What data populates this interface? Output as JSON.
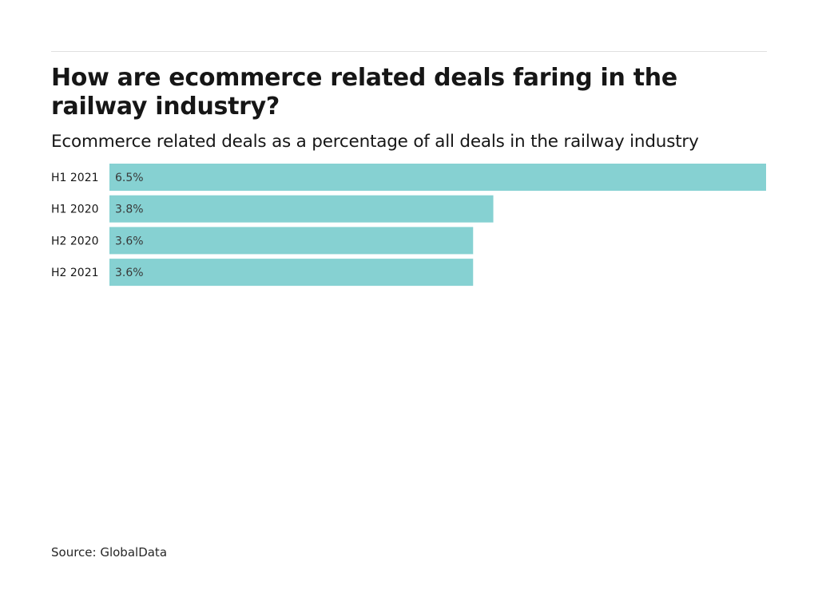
{
  "chart_data": {
    "type": "bar",
    "orientation": "horizontal",
    "title": "How are ecommerce related deals faring in the railway industry?",
    "subtitle": "Ecommerce related deals as a percentage of all deals in the railway industry",
    "categories": [
      "H1 2021",
      "H1 2020",
      "H2 2020",
      "H2 2021"
    ],
    "values": [
      6.5,
      3.8,
      3.6,
      3.6
    ],
    "value_labels": [
      "6.5%",
      "3.8%",
      "3.6%",
      "3.6%"
    ],
    "xlabel": "",
    "ylabel": "",
    "xlim": [
      0,
      6.5
    ],
    "grid": false,
    "legend": "none",
    "bar_color": "#86d1d2",
    "source": "Source: GlobalData"
  }
}
